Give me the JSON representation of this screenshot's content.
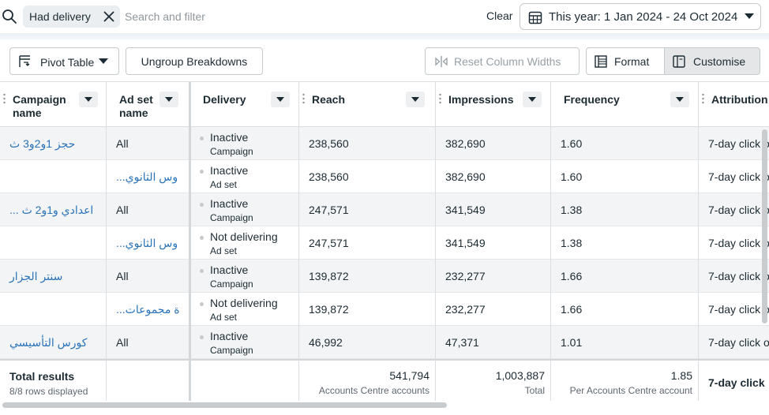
{
  "filter": {
    "chip_label": "Had delivery",
    "search_placeholder": "Search and filter",
    "clear_label": "Clear",
    "date_range_label": "This year: 1 Jan 2024 - 24 Oct 2024"
  },
  "toolbar": {
    "pivot_label": "Pivot Table",
    "ungroup_label": "Ungroup Breakdowns",
    "reset_label": "Reset Column Widths",
    "format_label": "Format",
    "customise_label": "Customise"
  },
  "table": {
    "columns": [
      "Campaign name",
      "Ad set name",
      "Delivery",
      "Reach",
      "Impressions",
      "Frequency",
      "Attribution"
    ],
    "rows": [
      {
        "campaign": "حجز 1و2و3 ث",
        "adset": "All",
        "delivery": "Inactive",
        "delivery_level": "Campaign",
        "reach": "238,560",
        "impressions": "382,690",
        "frequency": "1.60",
        "attribution": "7-day click o"
      },
      {
        "campaign": "",
        "adset": "...وس الثانوي",
        "delivery": "Inactive",
        "delivery_level": "Ad set",
        "reach": "238,560",
        "impressions": "382,690",
        "frequency": "1.60",
        "attribution": "7-day click o"
      },
      {
        "campaign": "... اعدادي و1و2 ث",
        "adset": "All",
        "delivery": "Inactive",
        "delivery_level": "Campaign",
        "reach": "247,571",
        "impressions": "341,549",
        "frequency": "1.38",
        "attribution": "7-day click o"
      },
      {
        "campaign": "",
        "adset": "...وس الثانوي",
        "delivery": "Not delivering",
        "delivery_level": "Ad set",
        "reach": "247,571",
        "impressions": "341,549",
        "frequency": "1.38",
        "attribution": "7-day click o"
      },
      {
        "campaign": "سنتر الجزار",
        "adset": "All",
        "delivery": "Inactive",
        "delivery_level": "Campaign",
        "reach": "139,872",
        "impressions": "232,277",
        "frequency": "1.66",
        "attribution": "7-day click o"
      },
      {
        "campaign": "",
        "adset": "...ة مجموعات",
        "delivery": "Not delivering",
        "delivery_level": "Ad set",
        "reach": "139,872",
        "impressions": "232,277",
        "frequency": "1.66",
        "attribution": "7-day click o"
      },
      {
        "campaign": "كورس التأسيسي",
        "adset": "All",
        "delivery": "Inactive",
        "delivery_level": "Campaign",
        "reach": "46,992",
        "impressions": "47,371",
        "frequency": "1.01",
        "attribution": "7-day click o"
      }
    ],
    "totals": {
      "label": "Total results",
      "displayed": "8/8 rows displayed",
      "reach": "541,794",
      "reach_sub": "Accounts Centre accounts",
      "impressions": "1,003,887",
      "impressions_sub": "Total",
      "frequency": "1.85",
      "frequency_sub": "Per Accounts Centre account",
      "attribution": "7-day click"
    }
  },
  "colors": {
    "link": "#2a73b9",
    "alt_row": "#f2f4f5",
    "border": "#dadde1"
  }
}
